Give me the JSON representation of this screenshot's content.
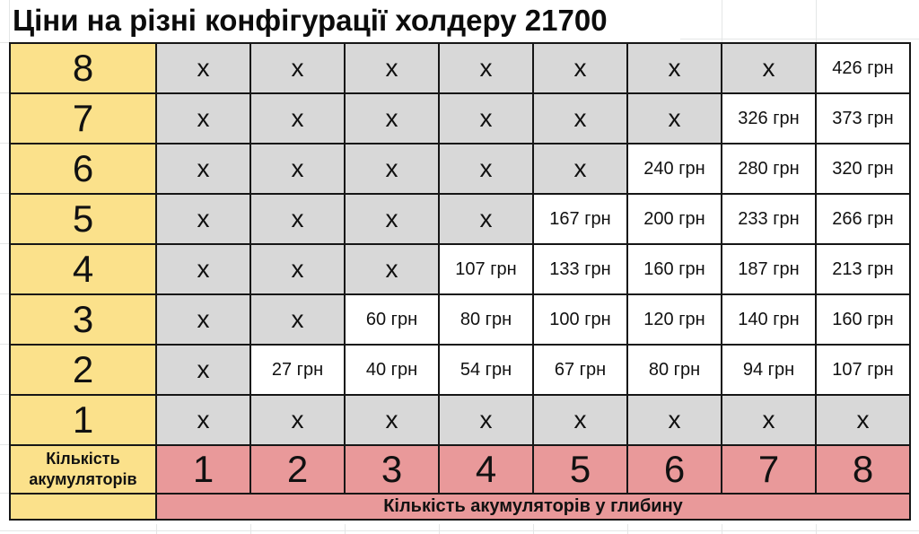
{
  "title": "Ціни на різні конфігурації холдеру 21700",
  "colors": {
    "yellow": "#FBE18B",
    "pink": "#E9999A",
    "gray": "#D8D8D8",
    "border": "#161616"
  },
  "table": {
    "corner_label": "Кількість\nакумуляторів",
    "footer_label": "Кількість акумуляторів у глибину",
    "row_labels": [
      "8",
      "7",
      "6",
      "5",
      "4",
      "3",
      "2",
      "1"
    ],
    "col_labels": [
      "1",
      "2",
      "3",
      "4",
      "5",
      "6",
      "7",
      "8"
    ],
    "x_marker": "х",
    "currency": "грн"
  },
  "chart_data": {
    "type": "table",
    "title": "Ціни на різні конфігурації холдеру 21700",
    "rows_axis_label": "Кількість акумуляторів",
    "cols_axis_label": "Кількість акумуляторів у глибину",
    "row_labels": [
      "8",
      "7",
      "6",
      "5",
      "4",
      "3",
      "2",
      "1"
    ],
    "col_labels": [
      "1",
      "2",
      "3",
      "4",
      "5",
      "6",
      "7",
      "8"
    ],
    "unavailable_marker": "х",
    "currency": "грн",
    "prices_uah": [
      [
        null,
        null,
        null,
        null,
        null,
        null,
        null,
        426
      ],
      [
        null,
        null,
        null,
        null,
        null,
        null,
        326,
        373
      ],
      [
        null,
        null,
        null,
        null,
        null,
        240,
        280,
        320
      ],
      [
        null,
        null,
        null,
        null,
        167,
        200,
        233,
        266
      ],
      [
        null,
        null,
        null,
        107,
        133,
        160,
        187,
        213
      ],
      [
        null,
        null,
        60,
        80,
        100,
        120,
        140,
        160
      ],
      [
        null,
        27,
        40,
        54,
        67,
        80,
        94,
        107
      ],
      [
        null,
        null,
        null,
        null,
        null,
        null,
        null,
        null
      ]
    ]
  }
}
